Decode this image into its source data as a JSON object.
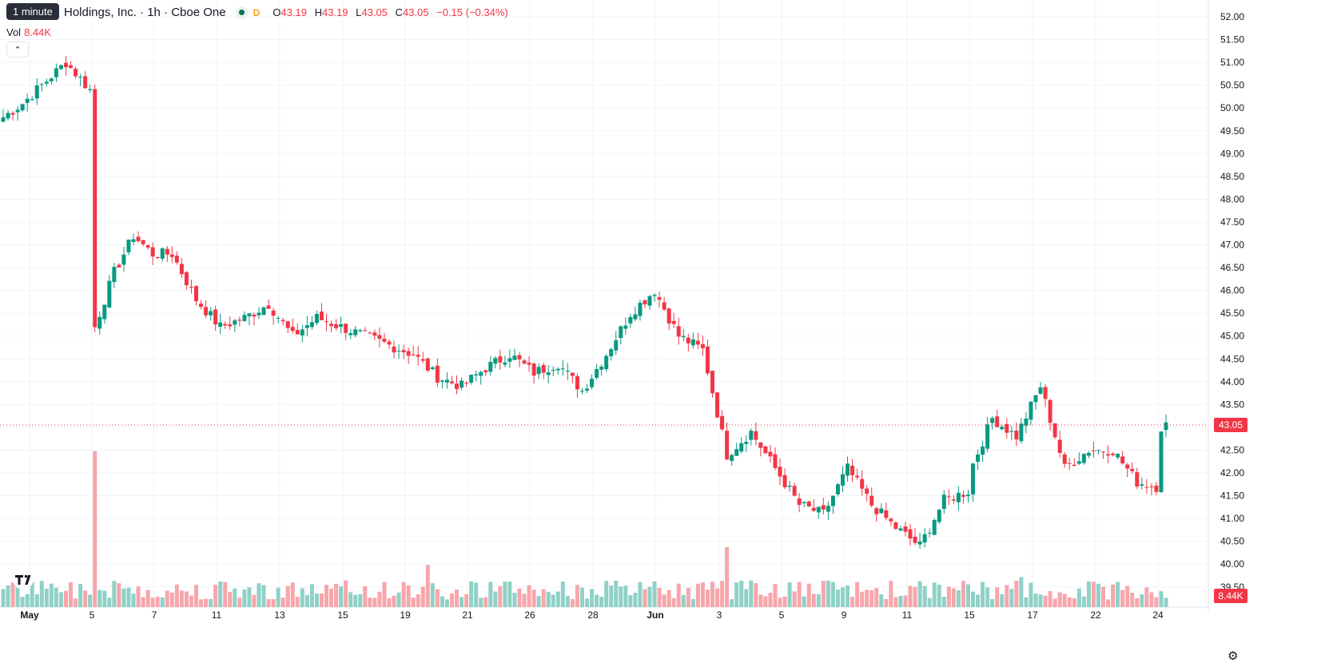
{
  "header": {
    "tooltip": "1 minute",
    "title": "Holdings, Inc. · 1h · Cboe One",
    "d_badge": "D",
    "ohlc": {
      "o_label": "O",
      "o": "43.19",
      "h_label": "H",
      "h": "43.19",
      "l_label": "L",
      "l": "43.05",
      "c_label": "C",
      "c": "43.05",
      "change": "−0.15 (−0.34%)"
    },
    "vol_label": "Vol",
    "vol_value": "8.44K",
    "collapse_icon": "chevron-up-icon"
  },
  "colors": {
    "up": "#089981",
    "down": "#f23645",
    "vol_up": "#8fd1c7",
    "vol_down": "#f7a6ab",
    "grid": "#f0f3fa"
  },
  "chart_data": {
    "type": "candlestick",
    "y_range": [
      39.3,
      52.2
    ],
    "y_ticks": [
      "52.00",
      "51.50",
      "51.00",
      "50.50",
      "50.00",
      "49.50",
      "49.00",
      "48.50",
      "48.00",
      "47.50",
      "47.00",
      "46.50",
      "46.00",
      "45.50",
      "45.00",
      "44.50",
      "44.00",
      "43.50",
      "43.00",
      "42.50",
      "42.00",
      "41.50",
      "41.00",
      "40.50",
      "40.00",
      "39.50"
    ],
    "x_labels": [
      "May",
      "5",
      "7",
      "11",
      "13",
      "15",
      "19",
      "21",
      "26",
      "28",
      "Jun",
      "3",
      "5",
      "9",
      "11",
      "15",
      "17",
      "22",
      "24"
    ],
    "last_price": "43.05",
    "last_volume": "8.44K",
    "anchors": [
      [
        0,
        49.8
      ],
      [
        4,
        50.1
      ],
      [
        8,
        50.5
      ],
      [
        13,
        51.0
      ],
      [
        18,
        50.4
      ],
      [
        19,
        45.2
      ],
      [
        23,
        46.4
      ],
      [
        27,
        47.2
      ],
      [
        31,
        46.8
      ],
      [
        35,
        46.8
      ],
      [
        40,
        45.8
      ],
      [
        45,
        45.2
      ],
      [
        50,
        45.4
      ],
      [
        55,
        45.7
      ],
      [
        60,
        45.0
      ],
      [
        65,
        45.4
      ],
      [
        70,
        45.2
      ],
      [
        75,
        45.0
      ],
      [
        80,
        44.8
      ],
      [
        85,
        44.6
      ],
      [
        90,
        44.1
      ],
      [
        95,
        43.9
      ],
      [
        100,
        44.3
      ],
      [
        105,
        44.6
      ],
      [
        110,
        44.2
      ],
      [
        115,
        44.4
      ],
      [
        120,
        43.8
      ],
      [
        125,
        44.6
      ],
      [
        130,
        45.5
      ],
      [
        135,
        46.0
      ],
      [
        140,
        45.0
      ],
      [
        145,
        44.7
      ],
      [
        150,
        42.4
      ],
      [
        155,
        42.9
      ],
      [
        160,
        42.1
      ],
      [
        165,
        41.3
      ],
      [
        170,
        41.1
      ],
      [
        175,
        42.1
      ],
      [
        180,
        41.3
      ],
      [
        185,
        40.8
      ],
      [
        190,
        40.4
      ],
      [
        195,
        41.4
      ],
      [
        200,
        41.6
      ],
      [
        201,
        42.2
      ],
      [
        205,
        43.2
      ],
      [
        210,
        42.8
      ],
      [
        215,
        43.9
      ],
      [
        220,
        42.1
      ],
      [
        225,
        42.5
      ],
      [
        230,
        42.5
      ],
      [
        235,
        41.8
      ],
      [
        239,
        41.7
      ],
      [
        240,
        43.0
      ],
      [
        241,
        43.05
      ]
    ],
    "series": [
      {
        "name": "Vol",
        "type": "volume",
        "spikes": [
          [
            19,
            2.44
          ],
          [
            88,
            0.66
          ],
          [
            150,
            0.94
          ],
          [
            211,
            0.47
          ]
        ]
      }
    ]
  }
}
